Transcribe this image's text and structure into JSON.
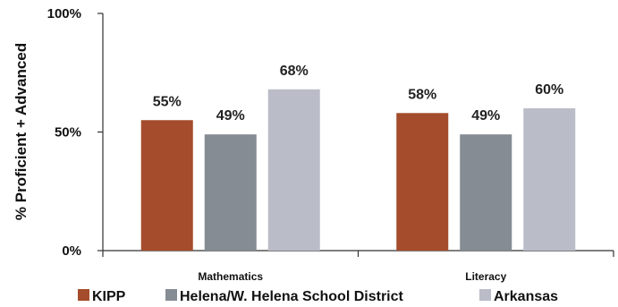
{
  "chart_data": {
    "type": "bar",
    "categories": [
      "Mathematics",
      "Literacy"
    ],
    "series": [
      {
        "name": "KIPP",
        "values": [
          55,
          58
        ],
        "color": "#A44C2C"
      },
      {
        "name": "Helena/W. Helena School District",
        "values": [
          49,
          49
        ],
        "color": "#858C93"
      },
      {
        "name": "Arkansas",
        "values": [
          68,
          60
        ],
        "color": "#BABDC8"
      }
    ],
    "data_labels": [
      [
        "55%",
        "49%",
        "68%"
      ],
      [
        "58%",
        "49%",
        "60%"
      ]
    ],
    "ylabel": "% Proficient + Advanced",
    "xlabel": "",
    "ylim": [
      0,
      100
    ],
    "yticks": [
      0,
      50,
      100
    ],
    "ytick_labels": [
      "0%",
      "50%",
      "100%"
    ],
    "grid": false,
    "legend_position": "bottom"
  }
}
